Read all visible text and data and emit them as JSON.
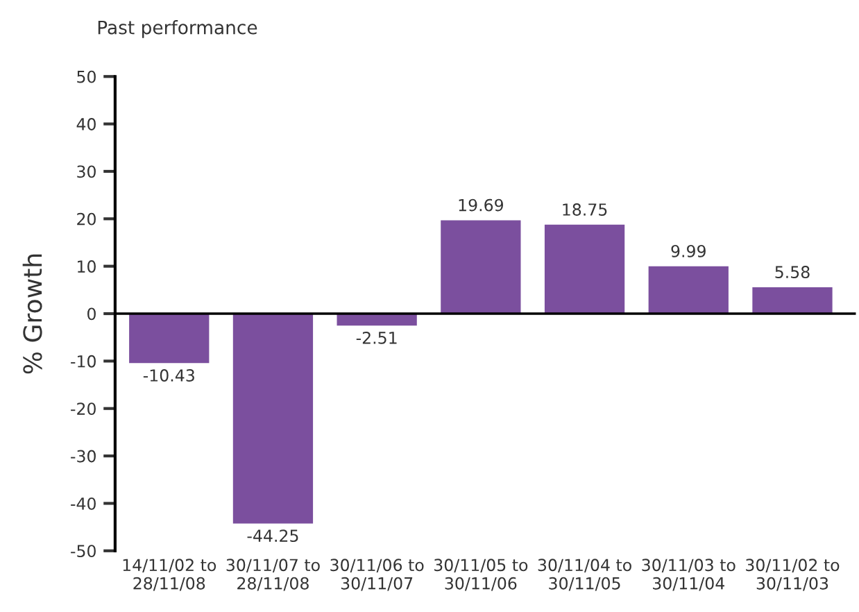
{
  "chart_data": {
    "type": "bar",
    "title": "Past performance",
    "ylabel": "% Growth",
    "categories": [
      "14/11/02 to\n28/11/08",
      "30/11/07 to\n28/11/08",
      "30/11/06 to\n30/11/07",
      "30/11/05 to\n30/11/06",
      "30/11/04 to\n30/11/05",
      "30/11/03 to\n30/11/04",
      "30/11/02 to\n30/11/03"
    ],
    "values": [
      -10.43,
      -44.25,
      -2.51,
      19.69,
      18.75,
      9.99,
      5.58
    ],
    "color": "#7b4f9e",
    "ylim": [
      -50,
      50
    ],
    "yticks": [
      -50,
      -40,
      -30,
      -20,
      -10,
      0,
      10,
      20,
      30,
      40,
      50
    ],
    "data_labels": true
  }
}
